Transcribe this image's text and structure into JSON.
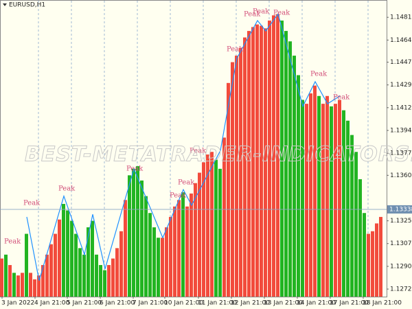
{
  "chart_data": {
    "type": "bar",
    "title": "EURUSD,H1",
    "watermark": "BEST-METATRADER-INDICATORS.COM",
    "xlabels": [
      "3 Jan 2022",
      "4 Jan 21:00",
      "5 Jan 21:00",
      "6 Jan 21:00",
      "7 Jan 21:00",
      "10 Jan 21:00",
      "11 Jan 21:00",
      "12 Jan 21:00",
      "13 Jan 21:00",
      "14 Jan 21:00",
      "17 Jan 21:00",
      "18 Jan 21:00"
    ],
    "values": [
      1.1296,
      1.1299,
      1.1291,
      1.1285,
      1.1283,
      1.1285,
      1.1315,
      1.1285,
      1.128,
      1.1283,
      1.1291,
      1.1299,
      1.1307,
      1.1315,
      1.1326,
      1.1338,
      1.1333,
      1.1325,
      1.1315,
      1.1304,
      1.1299,
      1.132,
      1.1325,
      1.1299,
      1.1291,
      1.1287,
      1.1291,
      1.1296,
      1.1304,
      1.1317,
      1.1341,
      1.136,
      1.1365,
      1.1367,
      1.1356,
      1.1344,
      1.1331,
      1.132,
      1.1312,
      1.1312,
      1.132,
      1.1328,
      1.1336,
      1.1341,
      1.1347,
      1.1336,
      1.1346,
      1.1354,
      1.1362,
      1.137,
      1.1376,
      1.1378,
      1.1372,
      1.1365,
      1.1389,
      1.1431,
      1.1447,
      1.1452,
      1.1458,
      1.1466,
      1.1471,
      1.1474,
      1.1476,
      1.1475,
      1.1473,
      1.1479,
      1.1483,
      1.1484,
      1.1479,
      1.1471,
      1.1463,
      1.1452,
      1.1437,
      1.1418,
      1.1415,
      1.1423,
      1.1429,
      1.1421,
      1.1415,
      1.1421,
      1.1413,
      1.1415,
      1.1418,
      1.141,
      1.1402,
      1.1391,
      1.1378,
      1.1357,
      1.1331,
      1.1315,
      1.1317,
      1.1323,
      1.1328
    ],
    "colors": [
      "#f24b3c",
      "#22b422",
      "#f24b3c",
      "#22b422",
      "#f24b3c",
      "#f24b3c",
      "#22b422",
      "#f24b3c",
      "#f24b3c",
      "#f24b3c",
      "#f24b3c",
      "#f24b3c",
      "#f24b3c",
      "#f24b3c",
      "#f24b3c",
      "#22b422",
      "#22b422",
      "#22b422",
      "#22b422",
      "#22b422",
      "#22b422",
      "#22b422",
      "#22b422",
      "#22b422",
      "#22b422",
      "#22b422",
      "#f24b3c",
      "#f24b3c",
      "#f24b3c",
      "#f24b3c",
      "#f24b3c",
      "#22b422",
      "#22b422",
      "#22b422",
      "#22b422",
      "#22b422",
      "#22b422",
      "#22b422",
      "#22b422",
      "#f24b3c",
      "#f24b3c",
      "#f24b3c",
      "#f24b3c",
      "#f24b3c",
      "#22b422",
      "#f24b3c",
      "#f24b3c",
      "#f24b3c",
      "#f24b3c",
      "#f24b3c",
      "#f24b3c",
      "#f24b3c",
      "#22b422",
      "#22b422",
      "#f24b3c",
      "#f24b3c",
      "#f24b3c",
      "#f24b3c",
      "#f24b3c",
      "#f24b3c",
      "#f24b3c",
      "#f24b3c",
      "#f24b3c",
      "#f24b3c",
      "#f24b3c",
      "#f24b3c",
      "#f24b3c",
      "#f24b3c",
      "#22b422",
      "#22b422",
      "#22b422",
      "#22b422",
      "#22b422",
      "#22b422",
      "#f24b3c",
      "#f24b3c",
      "#f24b3c",
      "#22b422",
      "#f24b3c",
      "#f24b3c",
      "#22b422",
      "#f24b3c",
      "#f24b3c",
      "#22b422",
      "#22b422",
      "#22b422",
      "#22b422",
      "#22b422",
      "#22b422",
      "#f24b3c",
      "#f24b3c",
      "#f24b3c",
      "#f24b3c"
    ],
    "zigzag": {
      "color": "#1e90ff",
      "x": [
        6,
        9,
        15,
        20,
        22,
        25,
        32,
        39,
        44,
        46,
        53,
        55,
        57,
        62,
        64,
        67,
        73,
        76,
        79,
        82
      ],
      "y": [
        1.1328,
        1.1279,
        1.1344,
        1.1299,
        1.133,
        1.1288,
        1.1365,
        1.1312,
        1.1349,
        1.1337,
        1.1379,
        1.1415,
        1.145,
        1.1479,
        1.1471,
        1.1484,
        1.1413,
        1.1432,
        1.1415,
        1.1421
      ]
    },
    "annotations": [
      "Peak",
      "Peak",
      "Peak",
      "Peak",
      "Peak",
      "Peak",
      "Peak",
      "Peak",
      "Peak",
      "Peak",
      "Peak",
      "Peak",
      "Peak"
    ],
    "current_price": 1.13338,
    "ylim": [
      1.12667,
      1.14948
    ],
    "yticks": [
      1.14815,
      {
        "value": 1.1464,
        "label": "1.14640"
      },
      {
        "value": 1.1447,
        "label": "1.14470"
      },
      1.14295,
      {
        "value": 1.1412,
        "label": "1.14120"
      },
      1.13945,
      {
        "value": 1.1377,
        "label": "1.13770"
      },
      {
        "value": 1.136,
        "label": "1.13600"
      },
      {
        "value": 1.1325,
        "label": "1.13250"
      },
      1.13075,
      {
        "value": 1.129,
        "label": "1.12900"
      },
      1.12725
    ]
  }
}
